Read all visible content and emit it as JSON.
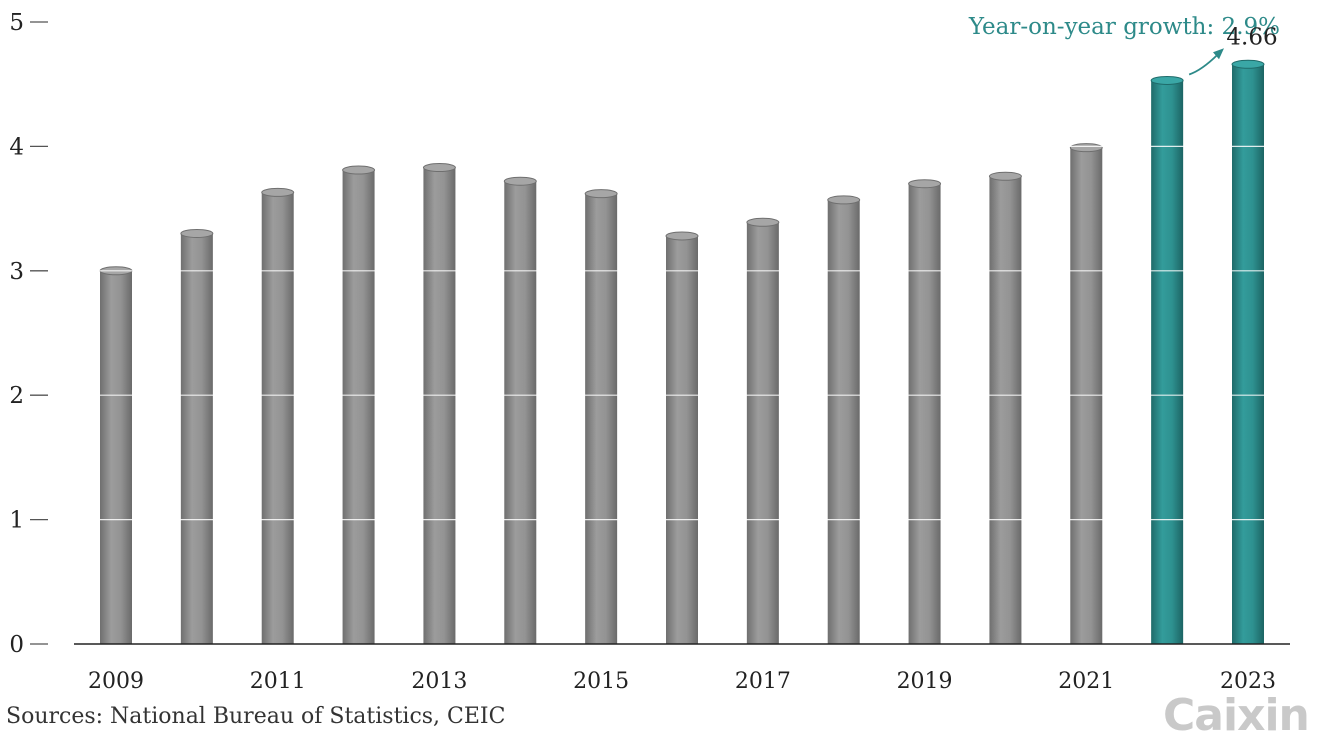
{
  "chart_data": {
    "type": "bar",
    "title": "",
    "xlabel": "",
    "ylabel": "",
    "ylim": [
      0,
      5
    ],
    "yticks": [
      "0",
      "1",
      "2",
      "3",
      "4",
      "5"
    ],
    "x_tick_labels": [
      "2009",
      "2011",
      "2013",
      "2015",
      "2017",
      "2019",
      "2021",
      "2023"
    ],
    "categories": [
      "2009",
      "2010",
      "2011",
      "2012",
      "2013",
      "2014",
      "2015",
      "2016",
      "2017",
      "2018",
      "2019",
      "2020",
      "2021",
      "2022",
      "2023"
    ],
    "values": [
      3.0,
      3.3,
      3.63,
      3.81,
      3.83,
      3.72,
      3.62,
      3.28,
      3.39,
      3.57,
      3.7,
      3.76,
      3.99,
      4.53,
      4.66
    ],
    "highlight_categories": [
      "2022",
      "2023"
    ],
    "grid": true,
    "colors": {
      "default": "#8e8e8e",
      "highlight": "#2d8a89",
      "annotation": "#2d8a89"
    },
    "annotation": {
      "growth_text": "Year-on-year growth: 2.9%",
      "value_label": "4.66"
    }
  },
  "source_note": "Sources: National Bureau of Statistics, CEIC",
  "logo": {
    "text": "Caixin",
    "color": "#c9c9c9"
  }
}
